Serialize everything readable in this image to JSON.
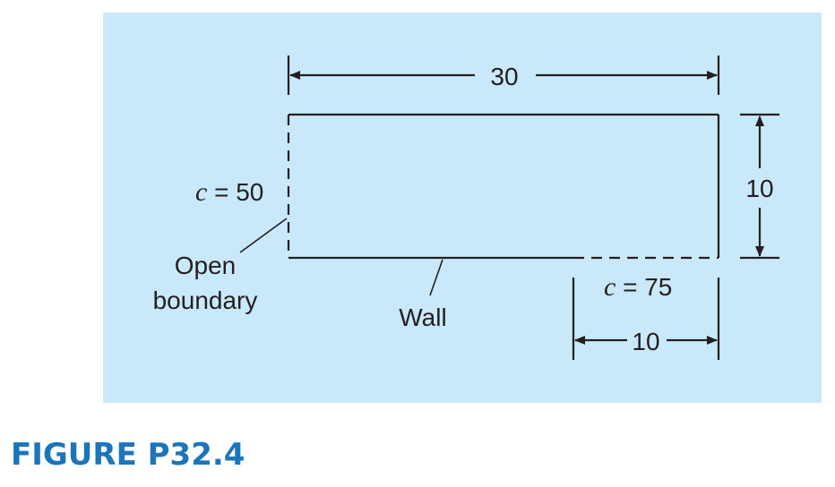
{
  "diagram": {
    "background_color": "#c9e9fb",
    "line_color": "#231f20",
    "dim_top": "30",
    "dim_right": "10",
    "dim_bottom": "10",
    "left_c_var": "c",
    "left_c_value": " = 50",
    "bottom_c_var": "c",
    "bottom_c_value": " = 75",
    "open_label_line1": "Open",
    "open_label_line2": "boundary",
    "wall_label": "Wall"
  },
  "caption": {
    "text": "FIGURE P32.4",
    "color": "#1b75bb"
  }
}
